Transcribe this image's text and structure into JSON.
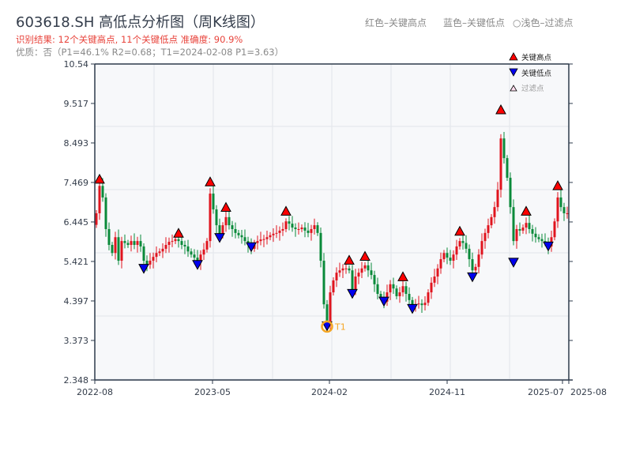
{
  "header": {
    "title": "603618.SH 高低点分析图（周K线图）",
    "result": "识别结果: 12个关键高点, 11个关键低点  准确度: 90.9%",
    "quality": "优质：否（P1=46.1%  R2=0.68；T1=2024-02-08 P1=3.63）",
    "legend_red": "红色–关键高点",
    "legend_blue": "蓝色–关键低点",
    "legend_light": "○浅色–过滤点"
  },
  "legend": {
    "high": "关键高点",
    "low": "关键低点",
    "filtered": "过滤点"
  },
  "colors": {
    "up": "#e0141e",
    "down": "#0a8a3a",
    "high_marker": "#ff0000",
    "low_marker": "#0000ee",
    "t1": "#f5a623",
    "axis": "#2d3a4b",
    "grid": "#e2e5ea",
    "plot_bg": "#f7f8fa"
  },
  "chart_data": {
    "type": "candlestick",
    "title": "603618.SH 高低点分析图（周K线图）",
    "ylim": [
      2.348,
      10.54
    ],
    "yticks": [
      "2.348",
      "3.373",
      "4.397",
      "5.421",
      "6.445",
      "7.469",
      "8.493",
      "9.517",
      "10.54"
    ],
    "xticks": [
      "2022-08",
      "2023-05",
      "2024-02",
      "2024-11",
      "2025-07",
      "2025-08"
    ],
    "closes": [
      6.67,
      7.38,
      7.08,
      6.26,
      5.85,
      5.64,
      6.05,
      5.44,
      5.95,
      5.9,
      5.85,
      5.95,
      5.85,
      5.95,
      5.81,
      5.44,
      5.34,
      5.44,
      5.54,
      5.64,
      5.68,
      5.75,
      5.85,
      5.93,
      5.95,
      6.0,
      5.95,
      5.85,
      5.81,
      5.68,
      5.6,
      5.52,
      5.4,
      5.6,
      5.73,
      5.95,
      7.18,
      6.77,
      6.36,
      6.1,
      6.36,
      6.57,
      6.36,
      6.26,
      6.16,
      6.1,
      6.05,
      5.95,
      5.85,
      5.75,
      5.9,
      5.95,
      5.99,
      6.0,
      6.05,
      6.1,
      6.14,
      6.16,
      6.22,
      6.26,
      6.46,
      6.4,
      6.3,
      6.26,
      6.26,
      6.3,
      6.22,
      6.16,
      6.26,
      6.36,
      6.16,
      5.44,
      4.31,
      3.8,
      4.62,
      4.93,
      5.13,
      5.19,
      5.24,
      5.24,
      5.19,
      4.66,
      5.03,
      5.13,
      5.24,
      5.32,
      5.19,
      5.07,
      4.83,
      4.58,
      4.5,
      4.38,
      4.62,
      4.83,
      4.72,
      4.52,
      4.62,
      4.78,
      4.58,
      4.42,
      4.29,
      4.31,
      4.33,
      4.29,
      4.35,
      4.62,
      4.87,
      5.03,
      5.24,
      5.48,
      5.64,
      5.52,
      5.44,
      5.6,
      5.81,
      5.95,
      5.9,
      5.75,
      5.48,
      5.19,
      5.28,
      5.6,
      5.95,
      6.16,
      6.36,
      6.57,
      6.83,
      7.28,
      8.61,
      8.1,
      7.59,
      6.83,
      5.95,
      6.26,
      6.22,
      6.3,
      6.42,
      6.26,
      6.14,
      6.05,
      6.0,
      5.95,
      5.93,
      5.81,
      6.05,
      6.46,
      7.08,
      6.83,
      6.67,
      6.67
    ],
    "key_highs": [
      {
        "i": 1,
        "price": 7.45
      },
      {
        "i": 26,
        "price": 6.05
      },
      {
        "i": 36,
        "price": 7.38
      },
      {
        "i": 41,
        "price": 6.72
      },
      {
        "i": 60,
        "price": 6.62
      },
      {
        "i": 80,
        "price": 5.35
      },
      {
        "i": 85,
        "price": 5.45
      },
      {
        "i": 97,
        "price": 4.92
      },
      {
        "i": 115,
        "price": 6.1
      },
      {
        "i": 128,
        "price": 9.25
      },
      {
        "i": 136,
        "price": 6.62
      },
      {
        "i": 146,
        "price": 7.28
      }
    ],
    "key_lows": [
      {
        "i": 15,
        "price": 5.12
      },
      {
        "i": 32,
        "price": 5.22
      },
      {
        "i": 39,
        "price": 5.92
      },
      {
        "i": 49,
        "price": 5.68
      },
      {
        "i": 73,
        "price": 3.63
      },
      {
        "i": 81,
        "price": 4.47
      },
      {
        "i": 91,
        "price": 4.27
      },
      {
        "i": 100,
        "price": 4.08
      },
      {
        "i": 119,
        "price": 4.9
      },
      {
        "i": 132,
        "price": 5.28
      },
      {
        "i": 143,
        "price": 5.7
      }
    ],
    "t1": {
      "i": 73,
      "price": 3.63,
      "label": "T1",
      "date": "2024-02-08"
    }
  }
}
